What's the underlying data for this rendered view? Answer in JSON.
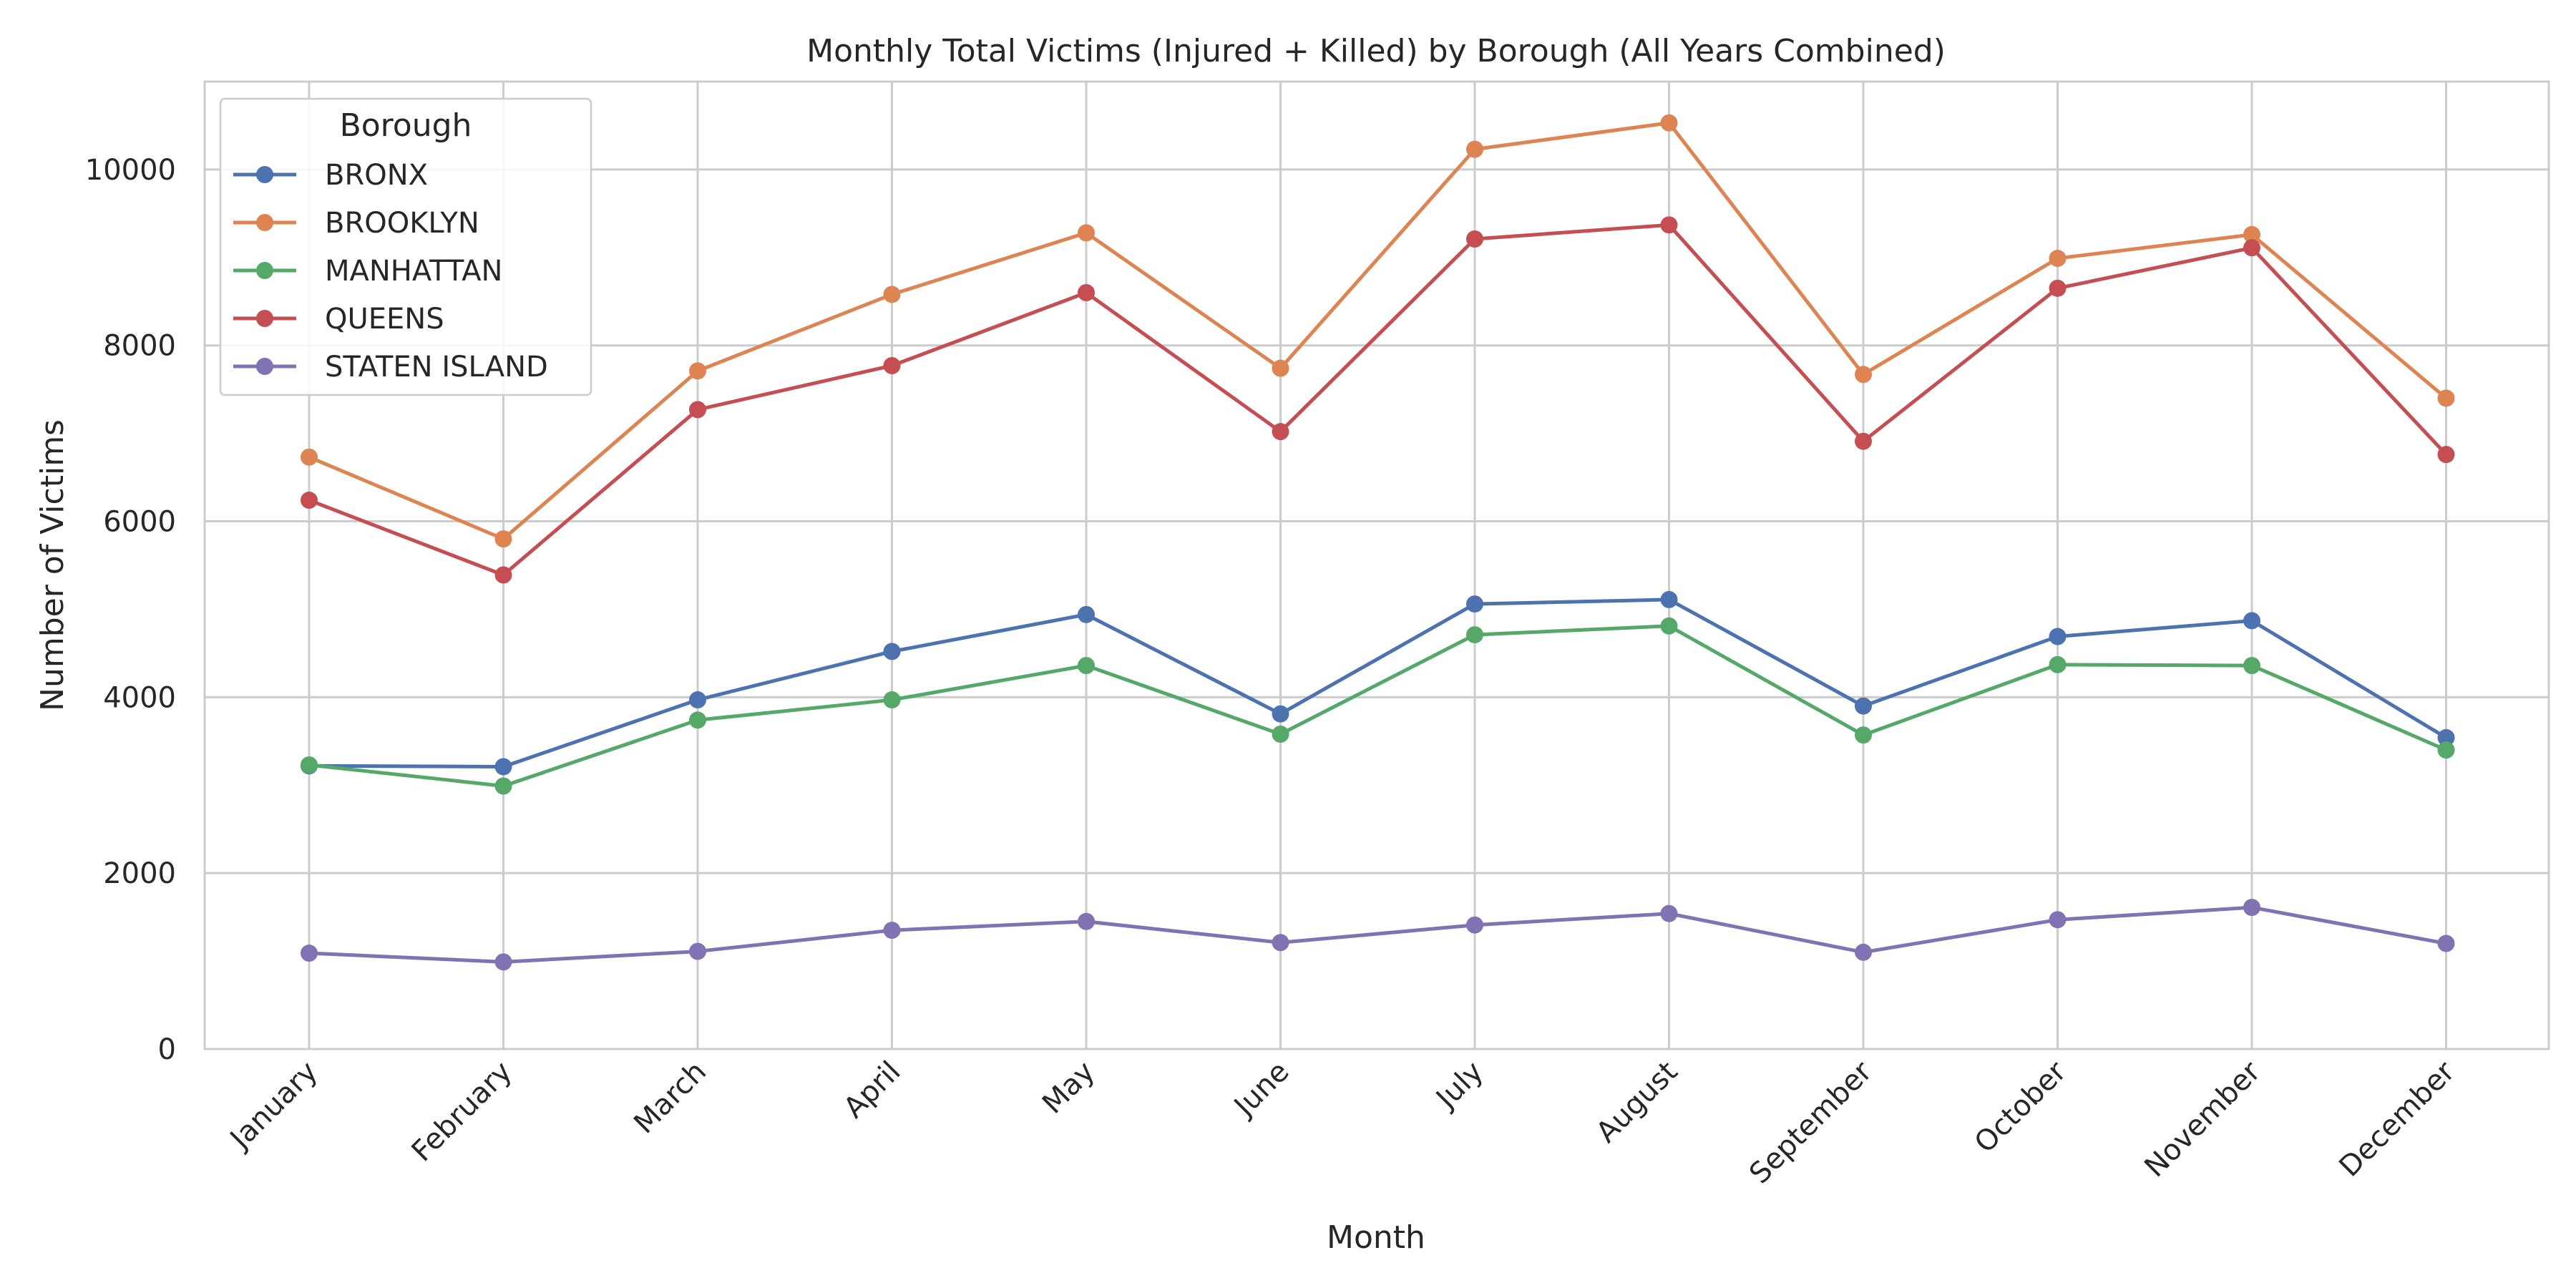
{
  "chart_data": {
    "type": "line",
    "title": "Monthly Total Victims (Injured + Killed) by Borough (All Years Combined)",
    "xlabel": "Month",
    "ylabel": "Number of Victims",
    "ylim": [
      0,
      11000
    ],
    "yticks": [
      0,
      2000,
      4000,
      6000,
      8000,
      10000
    ],
    "grid": true,
    "legend": {
      "title": "Borough",
      "placement": "top-left"
    },
    "categories": [
      "January",
      "February",
      "March",
      "April",
      "May",
      "June",
      "July",
      "August",
      "September",
      "October",
      "November",
      "December"
    ],
    "series": [
      {
        "name": "BRONX",
        "color": "#4c72b0",
        "values": [
          3220,
          3210,
          3970,
          4520,
          4940,
          3810,
          5060,
          5110,
          3900,
          4690,
          4870,
          3540
        ]
      },
      {
        "name": "BROOKLYN",
        "color": "#dd8452",
        "values": [
          6730,
          5800,
          7710,
          8580,
          9280,
          7740,
          10230,
          10530,
          7670,
          8990,
          9260,
          7400
        ]
      },
      {
        "name": "MANHATTAN",
        "color": "#55a868",
        "values": [
          3230,
          2990,
          3740,
          3970,
          4360,
          3580,
          4710,
          4810,
          3570,
          4370,
          4360,
          3400
        ]
      },
      {
        "name": "QUEENS",
        "color": "#c44e52",
        "values": [
          6240,
          5390,
          7270,
          7770,
          8600,
          7020,
          9210,
          9370,
          6910,
          8650,
          9110,
          6760
        ]
      },
      {
        "name": "STATEN ISLAND",
        "color": "#8172b3",
        "values": [
          1090,
          990,
          1110,
          1350,
          1450,
          1210,
          1410,
          1540,
          1100,
          1470,
          1610,
          1200
        ]
      }
    ]
  }
}
